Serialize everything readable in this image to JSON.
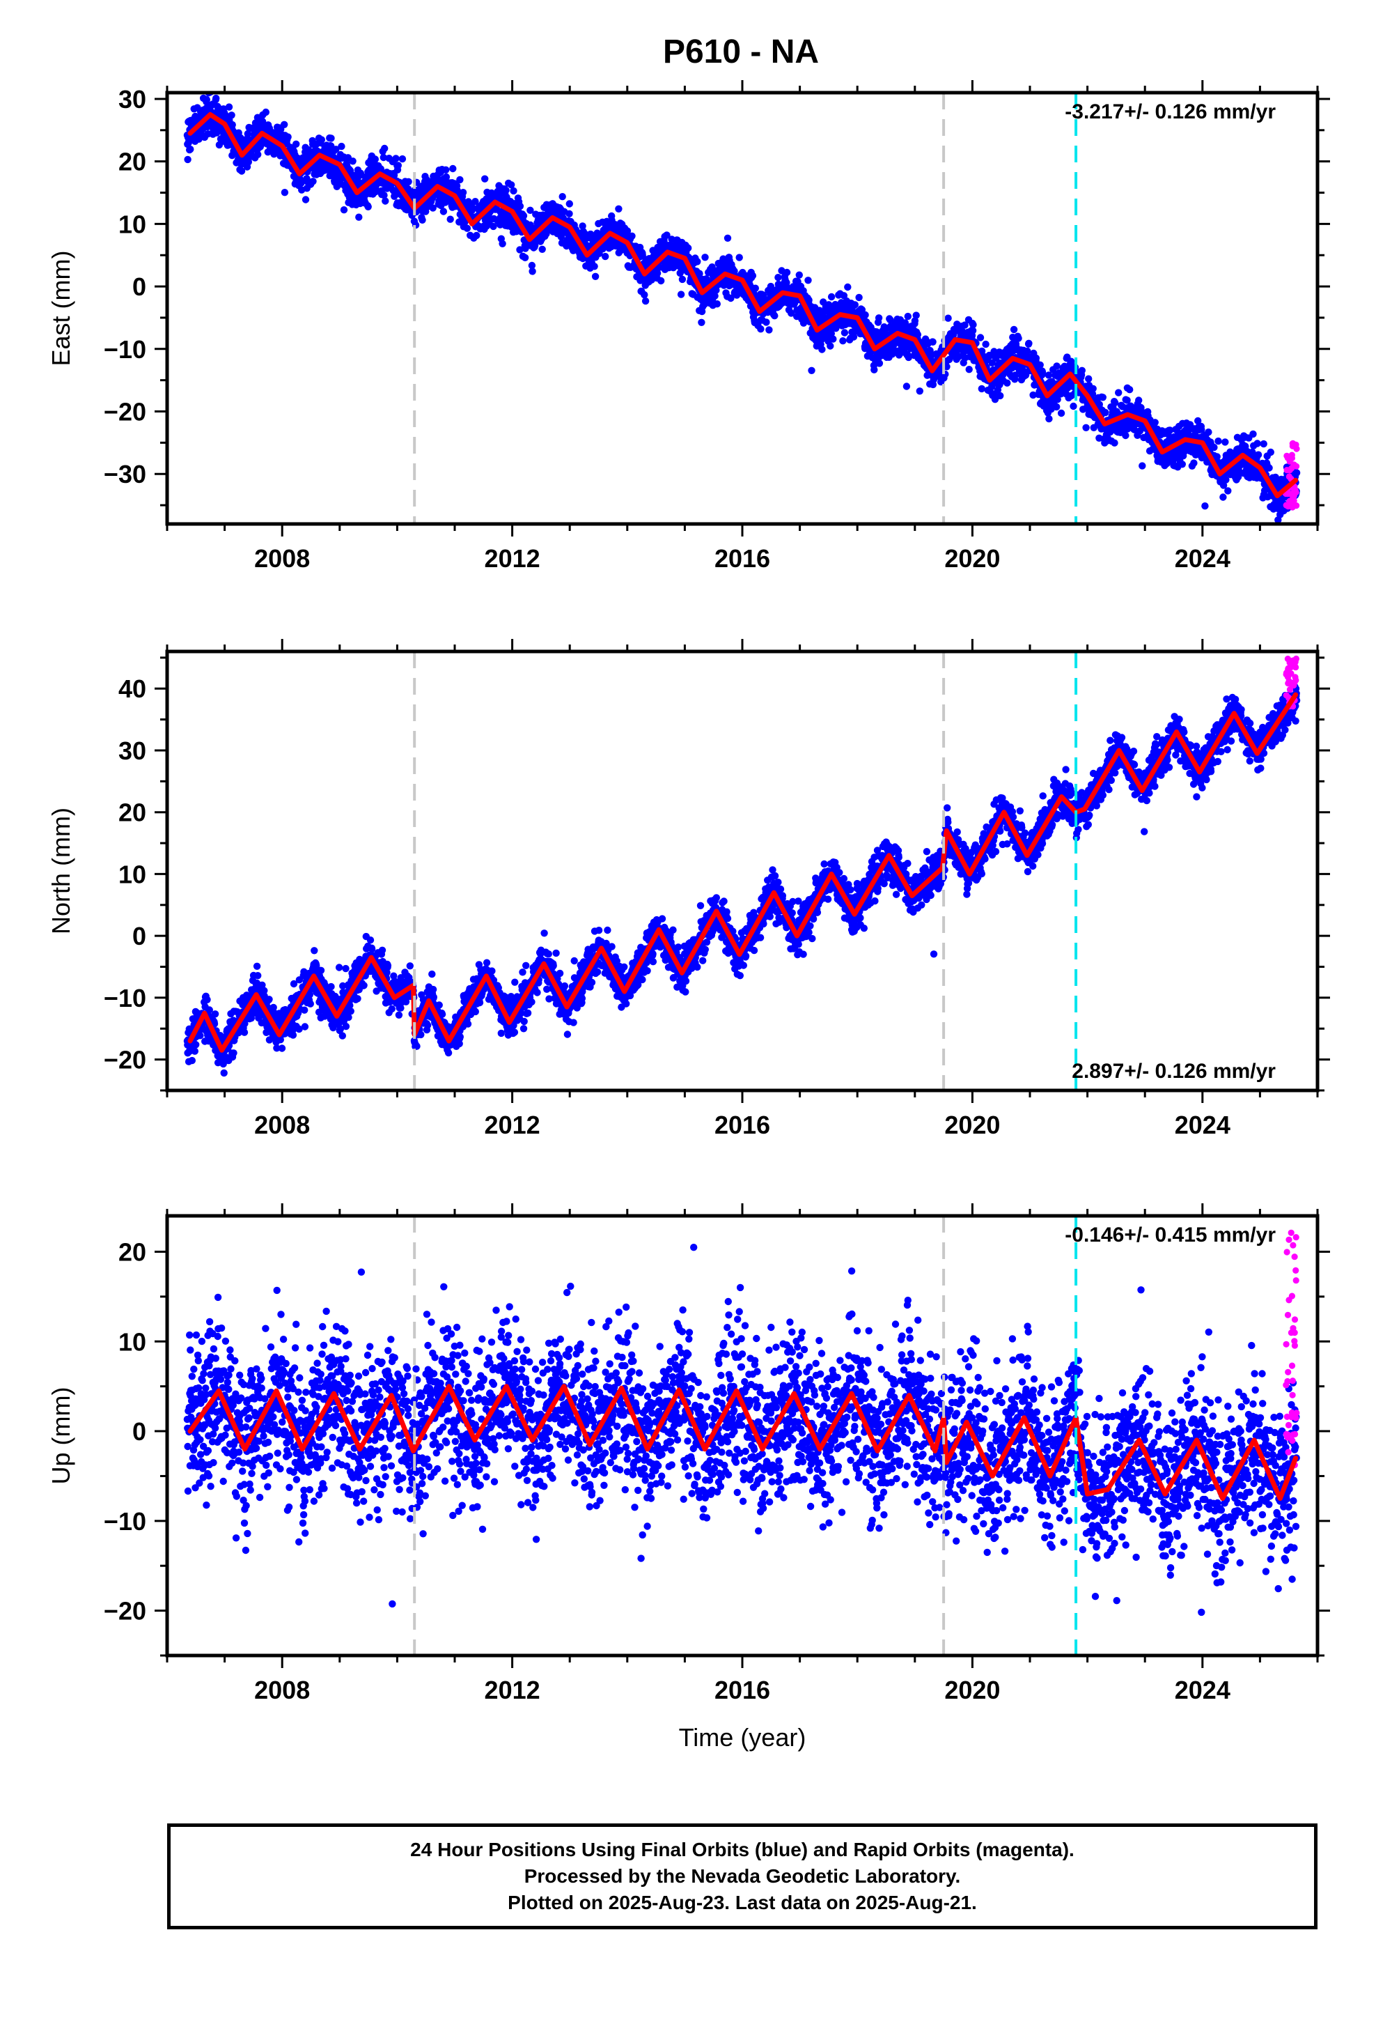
{
  "title": "P610 - NA",
  "footer": {
    "line1": "24 Hour Positions Using Final Orbits (blue) and Rapid Orbits (magenta).",
    "line2": "Processed by the Nevada Geodetic Laboratory.",
    "line3": "Plotted on 2025-Aug-23. Last data on 2025-Aug-21."
  },
  "colors": {
    "final_orbits": "#0000ff",
    "rapid_orbits": "#ff00ff",
    "model_fit": "#ff0000",
    "equipment_change": "#c8c8c8",
    "earthquake": "#00e5ee"
  },
  "chart_data": [
    {
      "type": "scatter",
      "component": "east",
      "ylabel": "East (mm)",
      "xlabel": "",
      "xlim": [
        2006.0,
        2026.0
      ],
      "ylim": [
        -38,
        31
      ],
      "xticks": [
        2008,
        2012,
        2016,
        2020,
        2024
      ],
      "xtick_labels": [
        "2008",
        "2012",
        "2016",
        "2020",
        "2024"
      ],
      "yticks": [
        -30,
        -20,
        -10,
        0,
        10,
        20,
        30
      ],
      "ytick_labels": [
        "−30",
        "−20",
        "−10",
        "0",
        "10",
        "20",
        "30"
      ],
      "rate_text": "-3.217+/- 0.126 mm/yr",
      "rate_position": "top-right",
      "grid": false,
      "data_start": 2006.35,
      "data_end": 2025.64,
      "model": {
        "type": "line",
        "color": "red",
        "x": [
          2006.4,
          2006.75,
          2007.0,
          2007.3,
          2007.65,
          2008.0,
          2008.3,
          2008.65,
          2009.0,
          2009.3,
          2009.7,
          2010.0,
          2010.3,
          2010.7,
          2011.0,
          2011.3,
          2011.7,
          2012.0,
          2012.3,
          2012.7,
          2013.0,
          2013.3,
          2013.7,
          2014.0,
          2014.3,
          2014.7,
          2015.0,
          2015.3,
          2015.7,
          2016.0,
          2016.3,
          2016.7,
          2017.0,
          2017.3,
          2017.7,
          2018.0,
          2018.3,
          2018.7,
          2019.0,
          2019.3,
          2019.7,
          2020.0,
          2020.3,
          2020.7,
          2021.0,
          2021.3,
          2021.7,
          2022.0,
          2022.3,
          2022.7,
          2023.0,
          2023.3,
          2023.7,
          2024.0,
          2024.3,
          2024.7,
          2025.0,
          2025.3,
          2025.62
        ],
        "y": [
          24.5,
          27.5,
          26.0,
          21.0,
          24.5,
          22.5,
          18.0,
          21.0,
          19.5,
          15.0,
          18.0,
          16.5,
          12.5,
          16.0,
          14.5,
          10.0,
          13.5,
          12.0,
          7.5,
          11.0,
          9.5,
          5.0,
          8.5,
          7.0,
          2.0,
          5.5,
          4.5,
          -1.0,
          2.0,
          1.0,
          -4.0,
          -1.0,
          -1.5,
          -7.0,
          -4.5,
          -5.0,
          -10.0,
          -7.5,
          -8.5,
          -13.5,
          -8.5,
          -9.0,
          -15.0,
          -11.5,
          -12.5,
          -17.5,
          -14.0,
          -17.5,
          -22.0,
          -20.5,
          -21.5,
          -26.5,
          -24.5,
          -25.0,
          -30.0,
          -27.0,
          -29.0,
          -33.5,
          -31.0
        ]
      },
      "series": [
        {
          "name": "Final Orbits",
          "color": "blue",
          "trend": [
            24.0,
            -3.217
          ],
          "seasonal_amp": 2.5,
          "scatter": 1.6
        },
        {
          "name": "Rapid Orbits",
          "color": "magenta",
          "x_range": [
            2025.45,
            2025.64
          ],
          "y_range": [
            -37,
            -25
          ]
        }
      ],
      "vlines": [
        {
          "x": 2010.3,
          "kind": "equipment_change"
        },
        {
          "x": 2019.5,
          "kind": "equipment_change"
        },
        {
          "x": 2021.8,
          "kind": "earthquake"
        }
      ]
    },
    {
      "type": "scatter",
      "component": "north",
      "ylabel": "North (mm)",
      "xlabel": "",
      "xlim": [
        2006.0,
        2026.0
      ],
      "ylim": [
        -25,
        46
      ],
      "xticks": [
        2008,
        2012,
        2016,
        2020,
        2024
      ],
      "xtick_labels": [
        "2008",
        "2012",
        "2016",
        "2020",
        "2024"
      ],
      "yticks": [
        -20,
        -10,
        0,
        10,
        20,
        30,
        40
      ],
      "ytick_labels": [
        "−20",
        "−10",
        "0",
        "10",
        "20",
        "30",
        "40"
      ],
      "rate_text": "2.897+/- 0.126 mm/yr",
      "rate_position": "bottom-right",
      "grid": false,
      "data_start": 2006.35,
      "data_end": 2025.64,
      "model": {
        "type": "line",
        "color": "red",
        "x": [
          2006.4,
          2006.65,
          2006.95,
          2007.55,
          2007.95,
          2008.55,
          2008.95,
          2009.55,
          2009.95,
          2010.28,
          2010.3,
          2010.55,
          2010.9,
          2011.55,
          2011.95,
          2012.55,
          2012.95,
          2013.55,
          2013.95,
          2014.55,
          2014.95,
          2015.55,
          2015.95,
          2016.55,
          2016.95,
          2017.55,
          2017.95,
          2018.55,
          2018.95,
          2019.48,
          2019.55,
          2019.95,
          2020.55,
          2020.95,
          2021.55,
          2021.8,
          2021.95,
          2022.55,
          2022.95,
          2023.55,
          2023.95,
          2024.55,
          2024.95,
          2025.62
        ],
        "y": [
          -17.0,
          -12.5,
          -18.5,
          -9.5,
          -16.0,
          -6.5,
          -13.0,
          -3.5,
          -10.0,
          -8.0,
          -16.0,
          -10.5,
          -17.0,
          -6.5,
          -14.0,
          -4.5,
          -11.5,
          -2.0,
          -9.0,
          1.0,
          -6.0,
          4.0,
          -3.0,
          7.0,
          0.0,
          10.0,
          3.5,
          13.0,
          6.5,
          11.0,
          17.0,
          10.0,
          20.0,
          13.0,
          22.5,
          20.0,
          20.5,
          30.0,
          23.5,
          33.0,
          26.5,
          36.0,
          29.5,
          39.0
        ]
      },
      "series": [
        {
          "name": "Final Orbits",
          "color": "blue",
          "trend": [
            -16.0,
            2.897
          ],
          "seasonal_amp": 3.5,
          "scatter": 1.6
        },
        {
          "name": "Rapid Orbits",
          "color": "magenta",
          "x_range": [
            2025.45,
            2025.64
          ],
          "y_range": [
            37,
            45
          ]
        }
      ],
      "vlines": [
        {
          "x": 2010.3,
          "kind": "equipment_change"
        },
        {
          "x": 2019.5,
          "kind": "equipment_change"
        },
        {
          "x": 2021.8,
          "kind": "earthquake"
        }
      ]
    },
    {
      "type": "scatter",
      "component": "up",
      "ylabel": "Up (mm)",
      "xlabel": "Time (year)",
      "xlim": [
        2006.0,
        2026.0
      ],
      "ylim": [
        -25,
        24
      ],
      "xticks": [
        2008,
        2012,
        2016,
        2020,
        2024
      ],
      "xtick_labels": [
        "2008",
        "2012",
        "2016",
        "2020",
        "2024"
      ],
      "yticks": [
        -20,
        -10,
        0,
        10,
        20
      ],
      "ytick_labels": [
        "−20",
        "−10",
        "0",
        "10",
        "20"
      ],
      "rate_text": "-0.146+/- 0.415 mm/yr",
      "rate_position": "top-right",
      "grid": false,
      "data_start": 2006.35,
      "data_end": 2025.64,
      "model": {
        "type": "line",
        "color": "red",
        "x": [
          2006.4,
          2006.9,
          2007.35,
          2007.9,
          2008.35,
          2008.9,
          2009.35,
          2009.9,
          2010.28,
          2010.9,
          2011.35,
          2011.9,
          2012.35,
          2012.9,
          2013.35,
          2013.9,
          2014.35,
          2014.9,
          2015.35,
          2015.9,
          2016.35,
          2016.9,
          2017.35,
          2017.9,
          2018.35,
          2018.9,
          2019.35,
          2019.5,
          2019.55,
          2019.9,
          2020.35,
          2020.9,
          2021.35,
          2021.8,
          2022.0,
          2022.35,
          2022.9,
          2023.35,
          2023.9,
          2024.35,
          2024.9,
          2025.35,
          2025.62
        ],
        "y": [
          0.0,
          4.5,
          -2.0,
          4.5,
          -2.0,
          4.2,
          -2.0,
          4.0,
          -2.2,
          5.0,
          -1.0,
          5.0,
          -1.0,
          5.0,
          -1.5,
          4.8,
          -2.0,
          4.6,
          -2.0,
          4.5,
          -2.0,
          4.2,
          -2.0,
          4.2,
          -2.2,
          4.0,
          -2.2,
          1.5,
          -3.5,
          1.0,
          -5.0,
          1.5,
          -5.0,
          1.5,
          -7.0,
          -6.5,
          -1.0,
          -7.0,
          -1.0,
          -7.5,
          -1.0,
          -7.5,
          -3.0
        ]
      },
      "series": [
        {
          "name": "Final Orbits",
          "color": "blue",
          "trend": [
            1.2,
            -0.146
          ],
          "seasonal_amp": 3.0,
          "scatter": 4.2
        },
        {
          "name": "Rapid Orbits",
          "color": "magenta",
          "x_range": [
            2025.45,
            2025.64
          ],
          "y_range": [
            -5,
            22.5
          ]
        }
      ],
      "vlines": [
        {
          "x": 2010.3,
          "kind": "equipment_change"
        },
        {
          "x": 2019.5,
          "kind": "equipment_change"
        },
        {
          "x": 2021.8,
          "kind": "earthquake"
        }
      ]
    }
  ]
}
